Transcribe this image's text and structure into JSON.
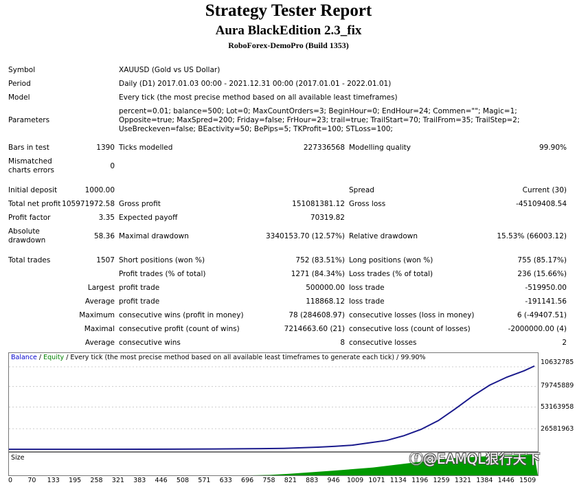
{
  "title": "Strategy Tester Report",
  "ea_name": "Aura BlackEdition 2.3_fix",
  "server": "RoboForex-DemoPro (Build 1353)",
  "info": {
    "symbol_label": "Symbol",
    "symbol": "XAUUSD (Gold vs US Dollar)",
    "period_label": "Period",
    "period": "Daily (D1) 2017.01.03 00:00 - 2021.12.31 00:00 (2017.01.01 - 2022.01.01)",
    "model_label": "Model",
    "model": "Every tick (the most precise method based on all available least timeframes)",
    "parameters_label": "Parameters",
    "parameters": "percent=0.01; balance=500; Lot=0; MaxCountOrders=3; BeginHour=0; EndHour=24; Commen=\"\"; Magic=1; Opposite=true; MaxSpred=200; Friday=false; FrHour=23; trail=true; TrailStart=70; TrailFrom=35; TrailStep=2; UseBreckeven=false; BEactivity=50; BePips=5; TKProfit=100; STLoss=100;"
  },
  "stats": {
    "bars_label": "Bars in test",
    "bars": "1390",
    "ticks_label": "Ticks modelled",
    "ticks": "227336568",
    "quality_label": "Modelling quality",
    "quality": "99.90%",
    "mismatch_label": "Mismatched charts errors",
    "mismatch": "0",
    "deposit_label": "Initial deposit",
    "deposit": "1000.00",
    "spread_label": "Spread",
    "spread": "Current (30)",
    "netprofit_label": "Total net profit",
    "netprofit": "105971972.58",
    "grossprofit_label": "Gross profit",
    "grossprofit": "151081381.12",
    "grossloss_label": "Gross loss",
    "grossloss": "-45109408.54",
    "pf_label": "Profit factor",
    "pf": "3.35",
    "payoff_label": "Expected payoff",
    "payoff": "70319.82",
    "absdd_label": "Absolute drawdown",
    "absdd": "58.36",
    "maxdd_label": "Maximal drawdown",
    "maxdd": "3340153.70 (12.57%)",
    "reldd_label": "Relative drawdown",
    "reldd": "15.53% (66003.12)",
    "trades_label": "Total trades",
    "trades": "1507",
    "short_label": "Short positions (won %)",
    "short": "752 (83.51%)",
    "long_label": "Long positions (won %)",
    "long": "755 (85.17%)",
    "profittrades_label": "Profit trades (% of total)",
    "profittrades": "1271 (84.34%)",
    "losstrades_label": "Loss trades (% of total)",
    "losstrades": "236 (15.66%)",
    "largest_label": "Largest",
    "largest_profit_label": "profit trade",
    "largest_profit": "500000.00",
    "largest_loss_label": "loss trade",
    "largest_loss": "-519950.00",
    "average_label": "Average",
    "avg_profit_label": "profit trade",
    "avg_profit": "118868.12",
    "avg_loss_label": "loss trade",
    "avg_loss": "-191141.56",
    "maximum_label": "Maximum",
    "max_wins_label": "consecutive wins (profit in money)",
    "max_wins": "78 (284608.97)",
    "max_losses_label": "consecutive losses (loss in money)",
    "max_losses": "6 (-49407.51)",
    "maximal_label": "Maximal",
    "maximal_profit_label": "consecutive profit (count of wins)",
    "maximal_profit": "7214663.60 (21)",
    "maximal_loss_label": "consecutive loss (count of losses)",
    "maximal_loss": "-2000000.00 (4)",
    "average2_label": "Average",
    "avg_wins_label": "consecutive wins",
    "avg_wins": "8",
    "avg_losses_label": "consecutive losses",
    "avg_losses": "2"
  },
  "legend": {
    "balance": "Balance",
    "sep1": " / ",
    "equity": "Equity",
    "rest": " / Every tick (the most precise method based on all available least timeframes to generate each tick) / 99.90%"
  },
  "size_label": "Size",
  "watermark": "@EAMQL狠行天下",
  "colors": {
    "balance": "#1a1a8c",
    "equity": "#2a8a2a",
    "size_fill": "#009900",
    "legend_blue": "#0000cc",
    "legend_green": "#008000"
  },
  "chart_data": {
    "type": "line",
    "x_ticks": [
      "0",
      "70",
      "133",
      "195",
      "258",
      "321",
      "383",
      "446",
      "508",
      "571",
      "633",
      "696",
      "758",
      "821",
      "883",
      "946",
      "1009",
      "1071",
      "1134",
      "1196",
      "1259",
      "1321",
      "1384",
      "1446",
      "1509"
    ],
    "y_ticks": [
      "10632785",
      "79745889",
      "53163958",
      "26581963"
    ],
    "xlim": [
      0,
      1540
    ],
    "ylim": [
      0,
      112000000
    ],
    "series": [
      {
        "name": "Balance",
        "x": [
          0,
          200,
          400,
          600,
          700,
          800,
          900,
          950,
          1000,
          1050,
          1100,
          1150,
          1200,
          1250,
          1300,
          1350,
          1400,
          1450,
          1500,
          1530
        ],
        "y": [
          800000,
          800000,
          900000,
          1200000,
          1500000,
          2000000,
          3500000,
          4500000,
          6000000,
          9000000,
          12000000,
          18000000,
          26000000,
          37000000,
          52000000,
          68000000,
          82000000,
          92000000,
          100000000,
          106000000
        ]
      }
    ],
    "size_bars": {
      "x": [
        0,
        700,
        760,
        820,
        880,
        940,
        1000,
        1060,
        1120,
        1180,
        1240,
        1300,
        1360,
        1420,
        1480,
        1530
      ],
      "y": [
        0,
        0,
        0.02,
        0.08,
        0.15,
        0.22,
        0.3,
        0.38,
        0.5,
        0.62,
        0.74,
        0.84,
        0.9,
        0.95,
        0.98,
        1.0
      ]
    }
  }
}
